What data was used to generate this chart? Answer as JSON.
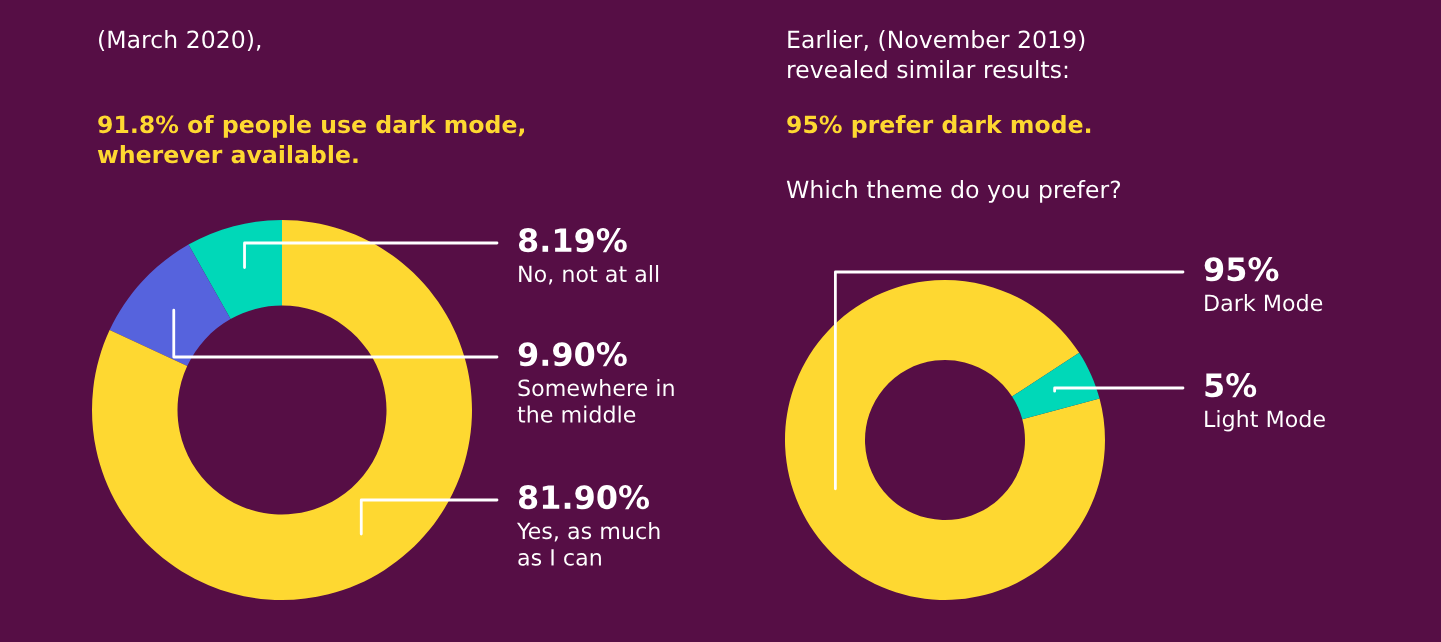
{
  "chart_data": [
    {
      "type": "donut",
      "subtitle": "(March 2020),",
      "title": "91.8% of people use dark mode,\nwherever available.",
      "categories": [
        "No, not at all",
        "Somewhere in\nthe middle",
        "Yes, as much\nas I can"
      ],
      "values": [
        8.19,
        9.9,
        81.9
      ],
      "colors": [
        "#00d8b8",
        "#5663dd",
        "#fed831"
      ],
      "value_labels": [
        "8.19%",
        "9.90%",
        "81.90%"
      ]
    },
    {
      "type": "donut",
      "subtitle": "Earlier, (November 2019)\nrevealed similar results:",
      "title": "95% prefer dark mode.",
      "annotations": [
        "Which theme do you prefer?"
      ],
      "categories": [
        "Dark Mode",
        "Light Mode"
      ],
      "values": [
        95,
        5
      ],
      "colors": [
        "#fed831",
        "#00d8b8"
      ],
      "value_labels": [
        "95%",
        "5%"
      ]
    }
  ]
}
